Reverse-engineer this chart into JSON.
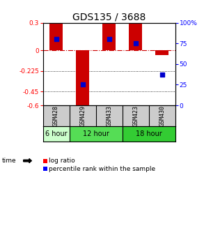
{
  "title": "GDS135 / 3688",
  "samples": [
    "GSM428",
    "GSM429",
    "GSM433",
    "GSM423",
    "GSM430"
  ],
  "log_ratios": [
    0.3,
    -0.63,
    0.3,
    0.3,
    -0.05
  ],
  "percentile_ranks": [
    80,
    25,
    80,
    75,
    37
  ],
  "ylim_left": [
    -0.6,
    0.3
  ],
  "ylim_right": [
    0,
    100
  ],
  "left_ticks": [
    0.3,
    0,
    -0.225,
    -0.45,
    -0.6
  ],
  "right_ticks": [
    100,
    75,
    50,
    25,
    0
  ],
  "right_tick_labels": [
    "100%",
    "75",
    "50",
    "25",
    "0"
  ],
  "time_groups": [
    {
      "label": "6 hour",
      "span": [
        0,
        1
      ],
      "color": "#ccffcc"
    },
    {
      "label": "12 hour",
      "span": [
        1,
        3
      ],
      "color": "#55dd55"
    },
    {
      "label": "18 hour",
      "span": [
        3,
        5
      ],
      "color": "#33cc33"
    }
  ],
  "bar_color": "#cc0000",
  "dot_color": "#0000cc",
  "bar_width": 0.5,
  "dot_size": 18,
  "hline_color": "#cc0000",
  "hline_style": "-.",
  "grid_color": "#000000",
  "grid_style": ":",
  "bg_color": "#ffffff",
  "plot_bg": "#ffffff",
  "sample_bg": "#cccccc",
  "title_fontsize": 10,
  "tick_fontsize": 6.5,
  "sample_fontsize": 6,
  "time_fontsize": 7,
  "legend_fontsize": 6.5
}
